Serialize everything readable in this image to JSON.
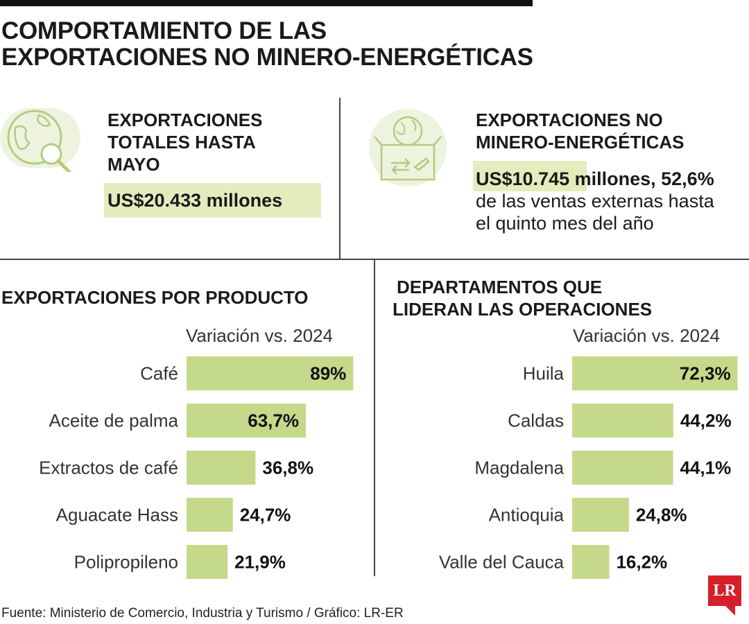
{
  "title": {
    "line1": "COMPORTAMIENTO DE LAS",
    "line2": "EXPORTACIONES NO MINERO-ENERGÉTICAS"
  },
  "panels": {
    "left": {
      "title_line1": "EXPORTACIONES",
      "title_line2": "TOTALES HASTA",
      "title_line3": "MAYO",
      "value": "US$20.433 millones",
      "icon": "globe-magnifier-icon"
    },
    "right": {
      "title_line1": "EXPORTACIONES NO",
      "title_line2": "MINERO-ENERGÉTICAS",
      "value_strong": "US$10.745 millones, 52,6%",
      "value_line2": "de las ventas externas hasta",
      "value_line3": "el quinto mes del año",
      "icon": "export-box-icon"
    }
  },
  "colors": {
    "bar": "#c5d98a",
    "highlight": "#e3ecbd",
    "icon_bg": "#edf3df",
    "icon_stroke": "#b3cc7d",
    "brand": "#d61f2a"
  },
  "chart_data": [
    {
      "type": "bar",
      "orientation": "horizontal",
      "title_line1": "EXPORTACIONES POR PRODUCTO",
      "subtitle": "Variación vs. 2024",
      "categories": [
        "Café",
        "Aceite de palma",
        "Extractos de café",
        "Aguacate Hass",
        "Polipropileno"
      ],
      "values": [
        89,
        63.7,
        36.8,
        24.7,
        21.9
      ],
      "labels": [
        "89%",
        "63,7%",
        "36,8%",
        "24,7%",
        "21,9%"
      ],
      "unit": "%"
    },
    {
      "type": "bar",
      "orientation": "horizontal",
      "title_line1": "DEPARTAMENTOS QUE",
      "title_line2": "LIDERAN LAS OPERACIONES",
      "subtitle": "Variación vs. 2024",
      "categories": [
        "Huila",
        "Caldas",
        "Magdalena",
        "Antioquia",
        "Valle del Cauca"
      ],
      "values": [
        72.3,
        44.2,
        44.1,
        24.8,
        16.2
      ],
      "labels": [
        "72,3%",
        "44,2%",
        "44,1%",
        "24,8%",
        "16,2%"
      ],
      "unit": "%"
    }
  ],
  "footer": "Fuente: Ministerio de Comercio, Industria y Turismo / Gráfico: LR-ER",
  "logo": "LR"
}
